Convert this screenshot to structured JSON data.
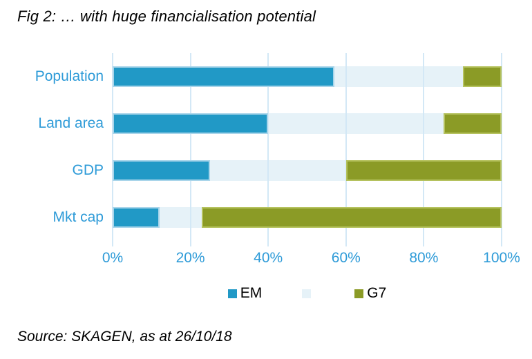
{
  "title": "Fig 2: … with huge financialisation potential",
  "source": "Source: SKAGEN, as at 26/10/18",
  "colors": {
    "axis_text": "#2E9BD8",
    "category_text": "#2E9BD8",
    "gridline": "#D3E8F6",
    "em_blue": "#2199C6",
    "em_blue_border": "#A9D5EA",
    "middle_light": "#E6F2F8",
    "g7_green": "#8B9B26",
    "g7_green_border": "#B5C25E",
    "text": "#000000",
    "background": "#FFFFFF"
  },
  "chart_data": {
    "type": "bar",
    "orientation": "horizontal",
    "stacked": true,
    "title": "Fig 2: … with huge financialisation potential",
    "xlabel": "",
    "ylabel": "",
    "xlim": [
      0,
      100
    ],
    "grid": true,
    "legend_position": "bottom",
    "x_ticks": [
      {
        "value": 0,
        "label": "0%"
      },
      {
        "value": 20,
        "label": "20%"
      },
      {
        "value": 40,
        "label": "40%"
      },
      {
        "value": 60,
        "label": "60%"
      },
      {
        "value": 80,
        "label": "80%"
      },
      {
        "value": 100,
        "label": "100%"
      }
    ],
    "categories": [
      "Population",
      "Land area",
      "GDP",
      "Mkt cap"
    ],
    "series": [
      {
        "name": "EM",
        "color": "#2199C6",
        "border_color": "#A9D5EA",
        "values": [
          57,
          40,
          25,
          12
        ]
      },
      {
        "name": "",
        "color": "#E6F2F8",
        "border_color": "#E6F2F8",
        "values": [
          33,
          45,
          35,
          11
        ]
      },
      {
        "name": "G7",
        "color": "#8B9B26",
        "border_color": "#B5C25E",
        "values": [
          10,
          15,
          40,
          77
        ]
      }
    ]
  }
}
